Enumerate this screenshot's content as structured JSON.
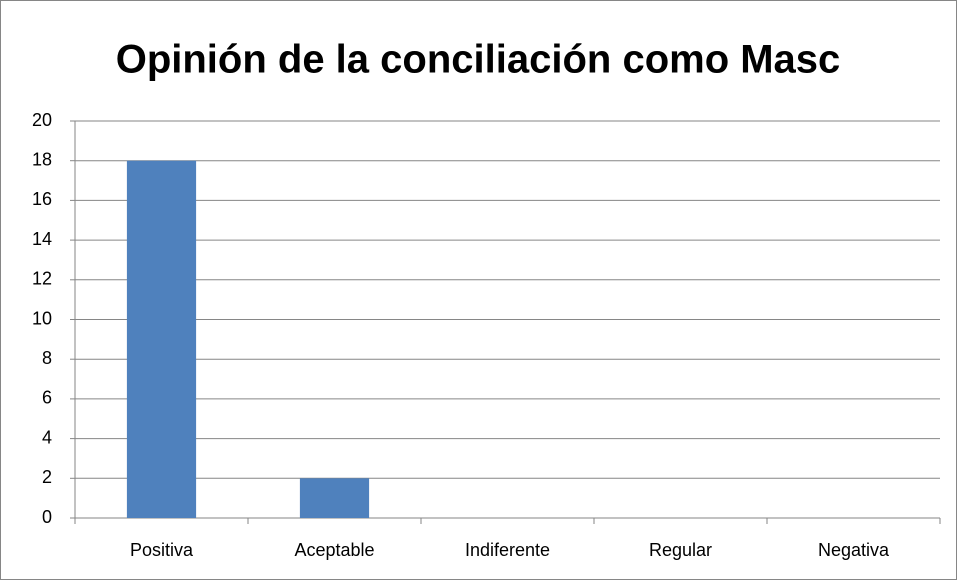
{
  "chart_data": {
    "type": "bar",
    "title": "Opinión de la conciliación como Masc",
    "categories": [
      "Positiva",
      "Aceptable",
      "Indiferente",
      "Regular",
      "Negativa"
    ],
    "values": [
      18,
      2,
      0,
      0,
      0
    ],
    "color": "#4f81bd",
    "ylim": [
      0,
      20
    ],
    "yticks": [
      0,
      2,
      4,
      6,
      8,
      10,
      12,
      14,
      16,
      18,
      20
    ],
    "grid": true
  }
}
